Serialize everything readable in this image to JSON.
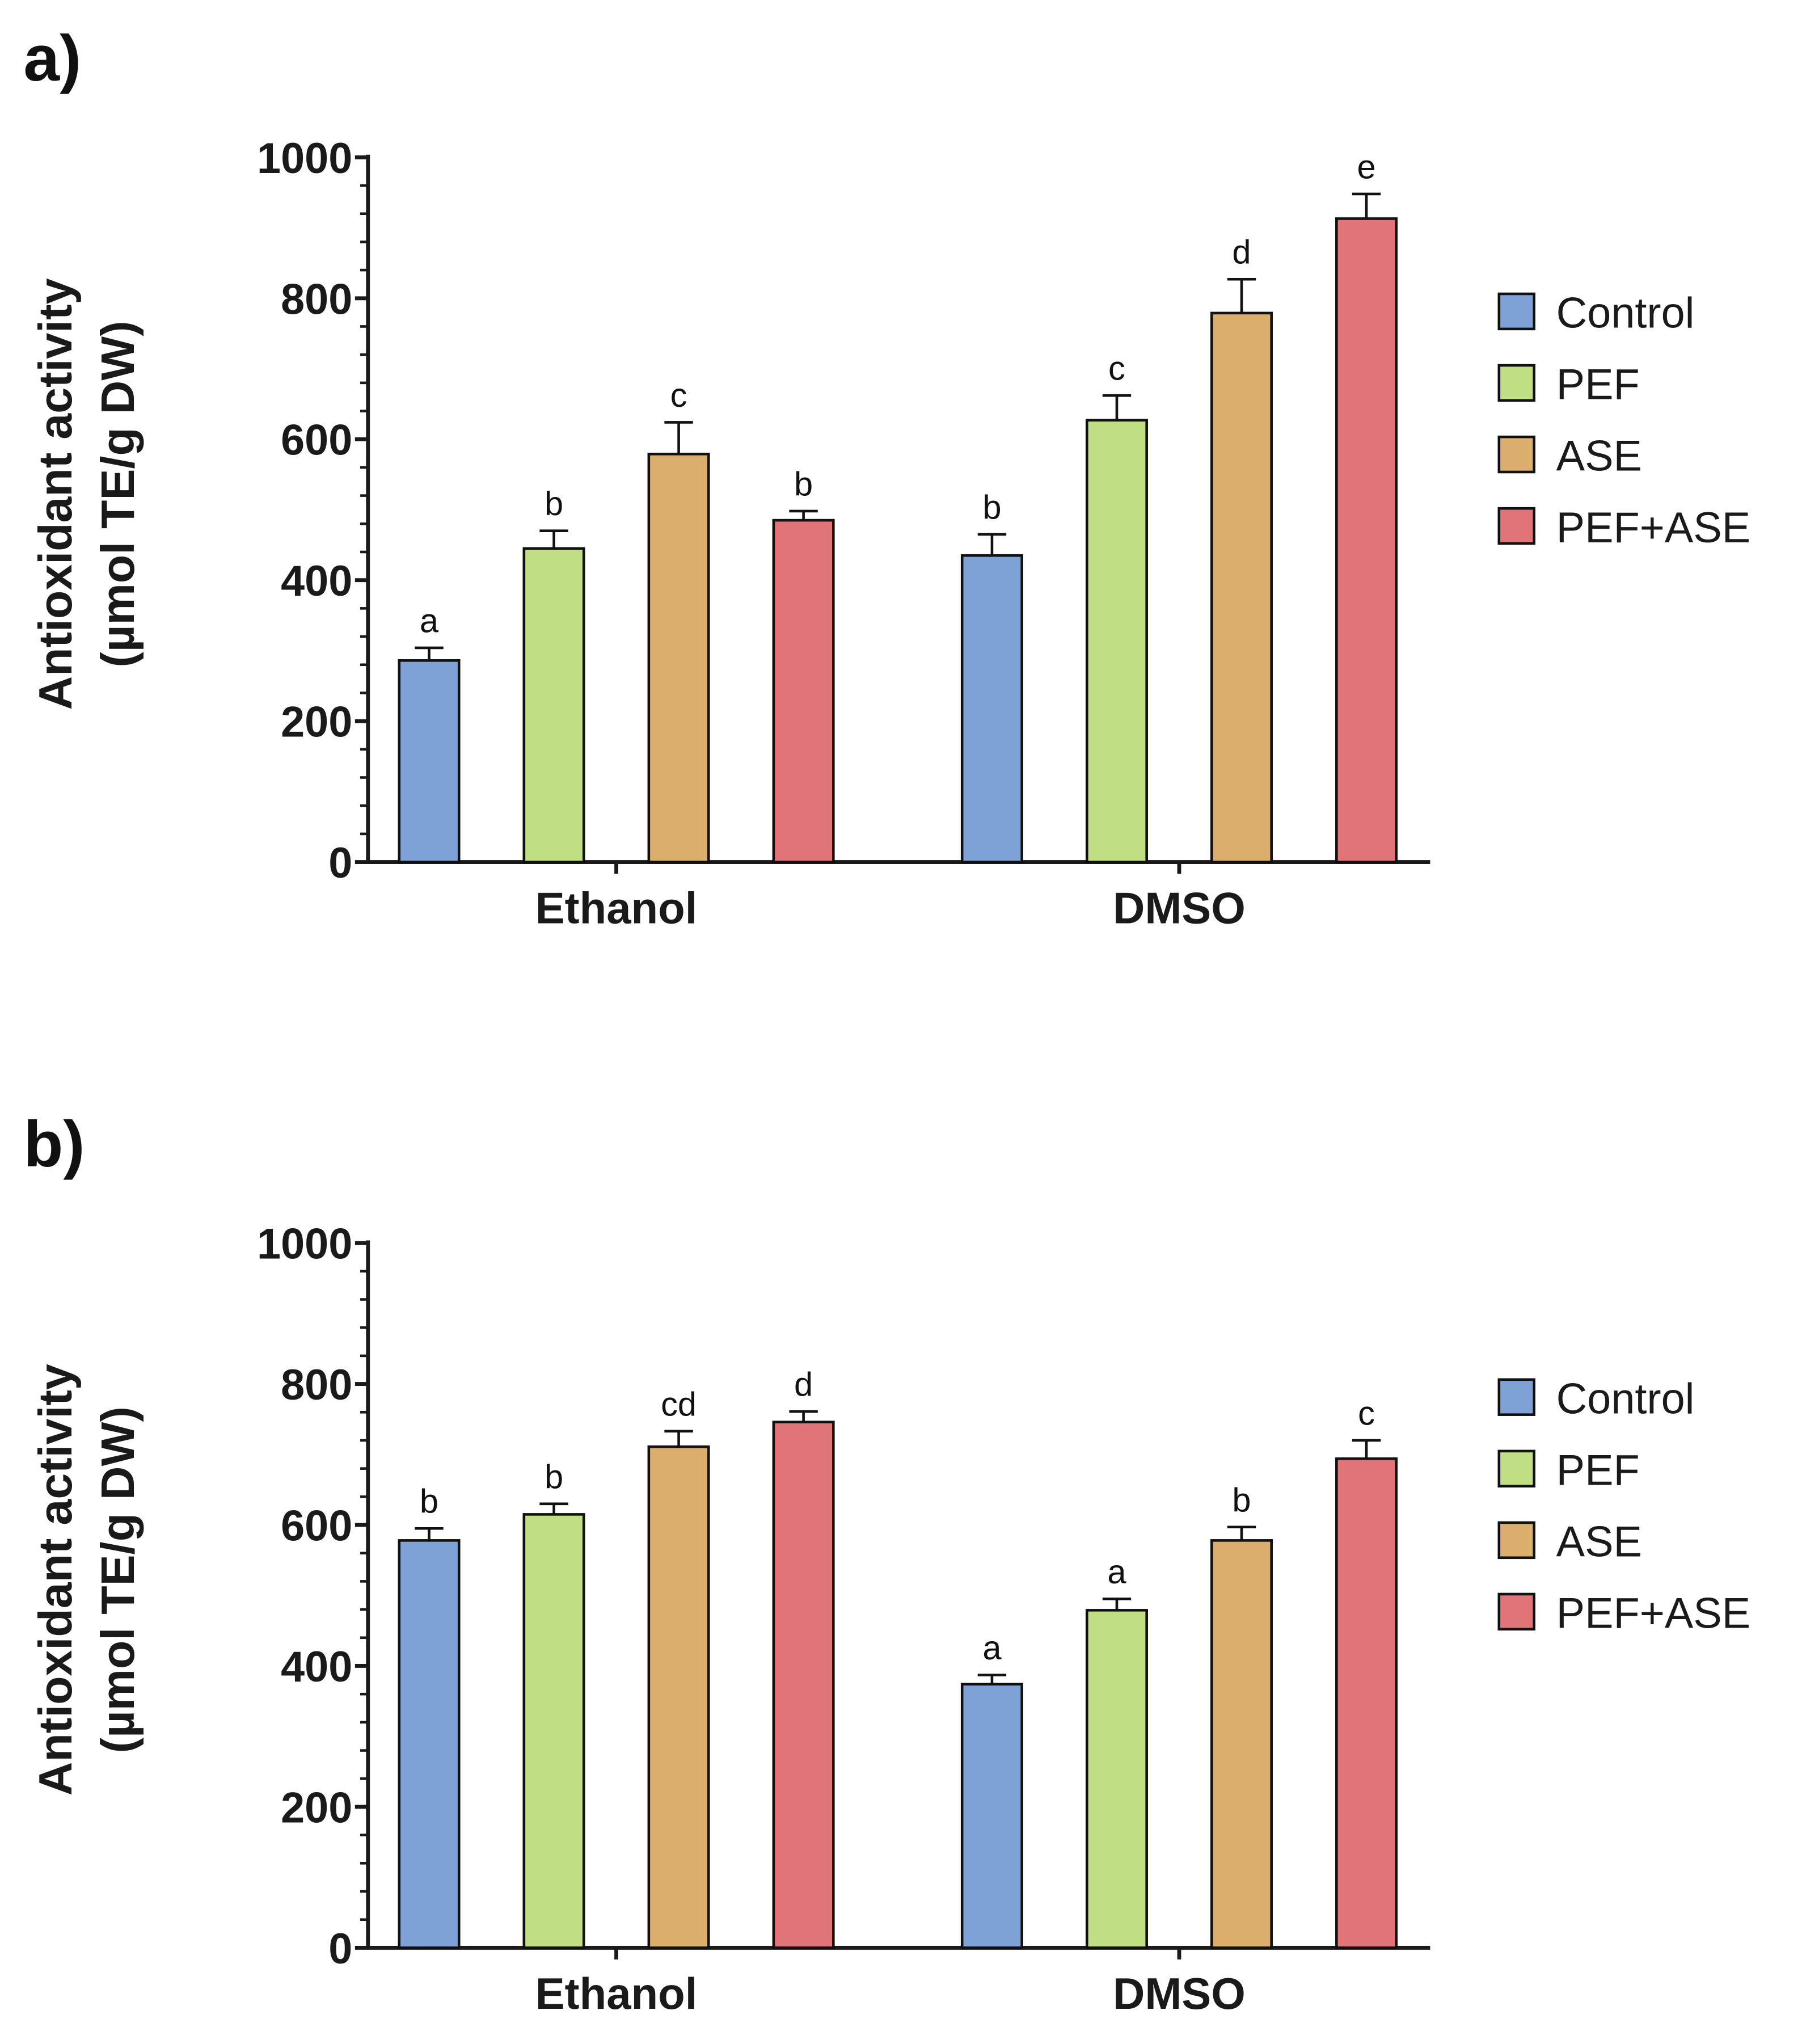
{
  "chart_data": [
    {
      "type": "bar",
      "panel_label": "a)",
      "categories": [
        "Ethanol",
        "DMSO"
      ],
      "ylabel": [
        "Antioxidant activity",
        "(µmol TE/g DW)"
      ],
      "ylim": [
        0,
        1000
      ],
      "yticks": [
        "0",
        "200",
        "400",
        "600",
        "800",
        "1000"
      ],
      "legend_position": "right",
      "series": [
        {
          "name": "Control",
          "color": "#7ea2d6",
          "values": [
            286,
            435
          ],
          "errors": [
            18,
            30
          ],
          "letters": [
            "a",
            "b"
          ]
        },
        {
          "name": "PEF",
          "color": "#c0df85",
          "values": [
            445,
            627
          ],
          "errors": [
            25,
            35
          ],
          "letters": [
            "b",
            "c"
          ]
        },
        {
          "name": "ASE",
          "color": "#dcae6e",
          "values": [
            579,
            779
          ],
          "errors": [
            45,
            48
          ],
          "letters": [
            "c",
            "d"
          ]
        },
        {
          "name": "PEF+ASE",
          "color": "#e07479",
          "values": [
            485,
            913
          ],
          "errors": [
            13,
            35
          ],
          "letters": [
            "b",
            "e"
          ]
        }
      ]
    },
    {
      "type": "bar",
      "panel_label": "b)",
      "categories": [
        "Ethanol",
        "DMSO"
      ],
      "ylabel": [
        "Antioxidant activity",
        "(µmol TE/g DW)"
      ],
      "ylim": [
        0,
        1000
      ],
      "yticks": [
        "0",
        "200",
        "400",
        "600",
        "800",
        "1000"
      ],
      "legend_position": "right",
      "series": [
        {
          "name": "Control",
          "color": "#7ea2d6",
          "values": [
            578,
            374
          ],
          "errors": [
            17,
            13
          ],
          "letters": [
            "b",
            "a"
          ]
        },
        {
          "name": "PEF",
          "color": "#c0df85",
          "values": [
            615,
            479
          ],
          "errors": [
            15,
            16
          ],
          "letters": [
            "b",
            "a"
          ]
        },
        {
          "name": "ASE",
          "color": "#dcae6e",
          "values": [
            711,
            578
          ],
          "errors": [
            22,
            19
          ],
          "letters": [
            "cd",
            "b"
          ]
        },
        {
          "name": "PEF+ASE",
          "color": "#e07479",
          "values": [
            746,
            694
          ],
          "errors": [
            15,
            26
          ],
          "letters": [
            "d",
            "c"
          ]
        }
      ]
    }
  ]
}
